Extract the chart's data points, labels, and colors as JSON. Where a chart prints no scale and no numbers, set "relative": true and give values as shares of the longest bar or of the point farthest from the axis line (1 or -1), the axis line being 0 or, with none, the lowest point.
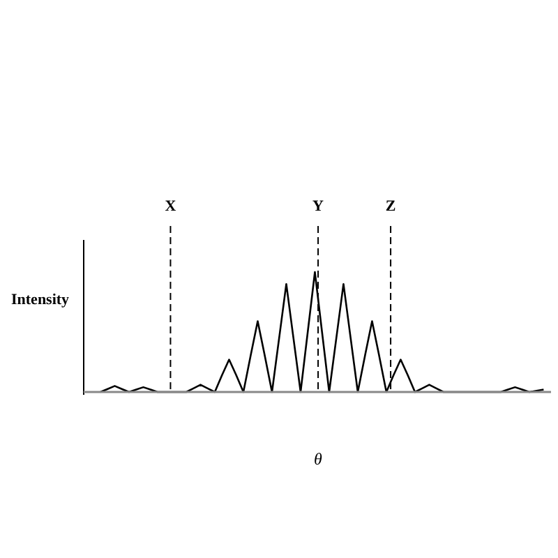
{
  "chart_data": {
    "type": "line",
    "xlabel": "θ",
    "ylabel": "Intensity",
    "relative": true,
    "categories": [
      null,
      null,
      null,
      null,
      null,
      null,
      null,
      null,
      null,
      null,
      null,
      null,
      null,
      null,
      null,
      null,
      null,
      null,
      null,
      null,
      null,
      null,
      null,
      null,
      null,
      null,
      null,
      null,
      null,
      null,
      null,
      null,
      null,
      null,
      null,
      null,
      null,
      null,
      null,
      null,
      null,
      null,
      null,
      null,
      null,
      null,
      null,
      null,
      null,
      null,
      null,
      null,
      null,
      null,
      null,
      null,
      null,
      null,
      null,
      null,
      null,
      null,
      null
    ],
    "series": [
      {
        "color": "#000000",
        "values": [
          0,
          0.025,
          0.05,
          0.025,
          0,
          0.02,
          0.04,
          0.02,
          0,
          0,
          0,
          0,
          0,
          0.03,
          0.06,
          0.03,
          0,
          0.14,
          0.27,
          0.14,
          0,
          0.3,
          0.59,
          0.3,
          0,
          0.45,
          0.9,
          0.45,
          0,
          0.5,
          1,
          0.5,
          0,
          0.45,
          0.9,
          0.45,
          0,
          0.3,
          0.59,
          0.3,
          0,
          0.14,
          0.27,
          0.14,
          0,
          0.03,
          0.06,
          0.03,
          0,
          0,
          0,
          0,
          0,
          0,
          0,
          0,
          0,
          0.02,
          0.04,
          0.02,
          0,
          0.01,
          0.02
        ]
      }
    ],
    "annotations": [
      "X",
      "Y",
      "Z"
    ]
  }
}
